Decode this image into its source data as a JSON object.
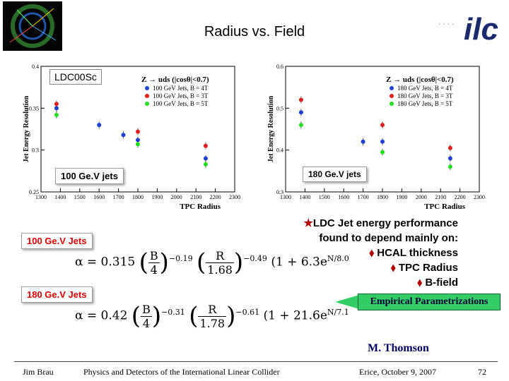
{
  "title": "Radius vs. Field",
  "logo_text": "ilc",
  "chart_data": [
    {
      "type": "scatter",
      "title": "Z → uds (|cosθ|<0.7)",
      "xlabel": "TPC Radius",
      "ylabel": "Jet Energy Resolution",
      "xlim": [
        1300,
        2300
      ],
      "ylim": [
        0.25,
        0.4
      ],
      "xticks": [
        "1300",
        "1400",
        "1500",
        "1600",
        "1700",
        "1800",
        "1900",
        "2000",
        "2100",
        "2200",
        "2300"
      ],
      "yticks": [
        "0.25",
        "0.3",
        "0.35",
        "0.4"
      ],
      "legend_position": "top-right",
      "series": [
        {
          "name": "100 GeV Jets, B = 4T",
          "color": "#1f3fd6",
          "x": [
            1380,
            1600,
            1725,
            1800,
            2150
          ],
          "y": [
            0.35,
            0.33,
            0.318,
            0.312,
            0.29
          ]
        },
        {
          "name": "100 GeV Jets, B = 3T",
          "color": "#e02020",
          "x": [
            1380,
            1800,
            2150
          ],
          "y": [
            0.355,
            0.322,
            0.305
          ]
        },
        {
          "name": "100 GeV Jets, B = 5T",
          "color": "#22dd22",
          "x": [
            1380,
            1800,
            2150
          ],
          "y": [
            0.342,
            0.307,
            0.283
          ]
        }
      ]
    },
    {
      "type": "scatter",
      "title": "Z → uds (|cosθ|<0.7)",
      "xlabel": "TPC Radius",
      "ylabel": "Jet Energy Resolution",
      "xlim": [
        1300,
        2300
      ],
      "ylim": [
        0.3,
        0.6
      ],
      "xticks": [
        "1300",
        "1400",
        "1500",
        "1600",
        "1700",
        "1800",
        "1900",
        "2000",
        "2100",
        "2200",
        "2300"
      ],
      "yticks": [
        "0.3",
        "0.4",
        "0.5",
        "0.6"
      ],
      "legend_position": "top-right",
      "series": [
        {
          "name": "180 GeV Jets, B = 4T",
          "color": "#1f3fd6",
          "x": [
            1380,
            1700,
            1800,
            2150
          ],
          "y": [
            0.49,
            0.42,
            0.42,
            0.38
          ]
        },
        {
          "name": "180 GeV Jets, B = 3T",
          "color": "#e02020",
          "x": [
            1380,
            1800,
            2150
          ],
          "y": [
            0.52,
            0.46,
            0.405
          ]
        },
        {
          "name": "180 GeV Jets, B = 5T",
          "color": "#22dd22",
          "x": [
            1380,
            1800,
            2150
          ],
          "y": [
            0.46,
            0.395,
            0.36
          ]
        }
      ]
    }
  ],
  "labels": {
    "ldc": "LDC00Sc",
    "jets100": "100 Ge.V jets",
    "jets180": "180 Ge.V jets",
    "jets100b": "100 Ge.V Jets",
    "jets180b": "180 Ge.V Jets"
  },
  "formulas": {
    "f1": {
      "lhs": "α = 0.315",
      "b": "B",
      "b_den": "4",
      "b_exp": "−0.19",
      "r": "R",
      "r_den": "1.68",
      "r_exp": "−0.49",
      "tail": "(1 + 6.3e",
      "tail_exp_num": "N",
      "tail_exp_den": "8.0"
    },
    "f2": {
      "lhs": "α = 0.42",
      "b": "B",
      "b_den": "4",
      "b_exp": "−0.31",
      "r": "R",
      "r_den": "1.78",
      "r_exp": "−0.61",
      "tail": "(1 + 21.6e",
      "tail_exp_num": "N",
      "tail_exp_den": "7.1"
    }
  },
  "bullets": {
    "head1": "LDC Jet energy performance",
    "head2": "found to depend mainly on:",
    "items": [
      "HCAL thickness",
      "TPC Radius",
      "B-field"
    ]
  },
  "empirical": "Empirical Parametrizations",
  "author": "M. Thomson",
  "footer": {
    "left": "Jim Brau",
    "center": "Physics and Detectors of the International Linear Collider",
    "right": "Erice, October 9, 2007",
    "page": "72"
  }
}
